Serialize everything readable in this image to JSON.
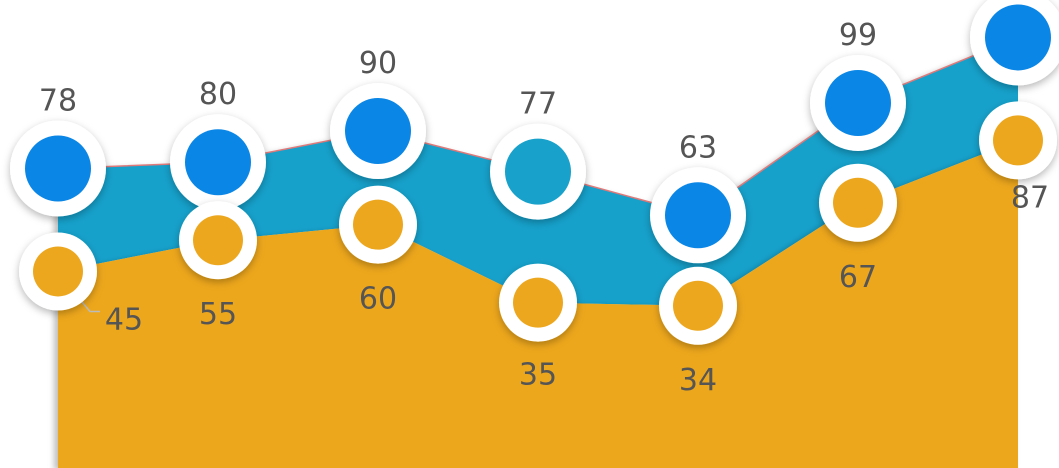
{
  "chart_data": {
    "type": "area",
    "series": [
      {
        "values": [
          78,
          80,
          90,
          77,
          63,
          99,
          120
        ]
      },
      {
        "values": [
          45,
          55,
          60,
          35,
          34,
          67,
          87
        ]
      }
    ],
    "title": "",
    "xlabel": "",
    "ylabel": "",
    "legend": "none",
    "grid": false,
    "ylim": [
      -18,
      132
    ],
    "colors": {
      "upper_area": "#17A1CB",
      "lower_area": "#EDA71E",
      "upper_marker": "#0A86E6",
      "upper_marker_light": "#17A1CB",
      "lower_marker": "#EDA71E",
      "upper_edge": "#E07A7A",
      "label": "#555555"
    }
  }
}
